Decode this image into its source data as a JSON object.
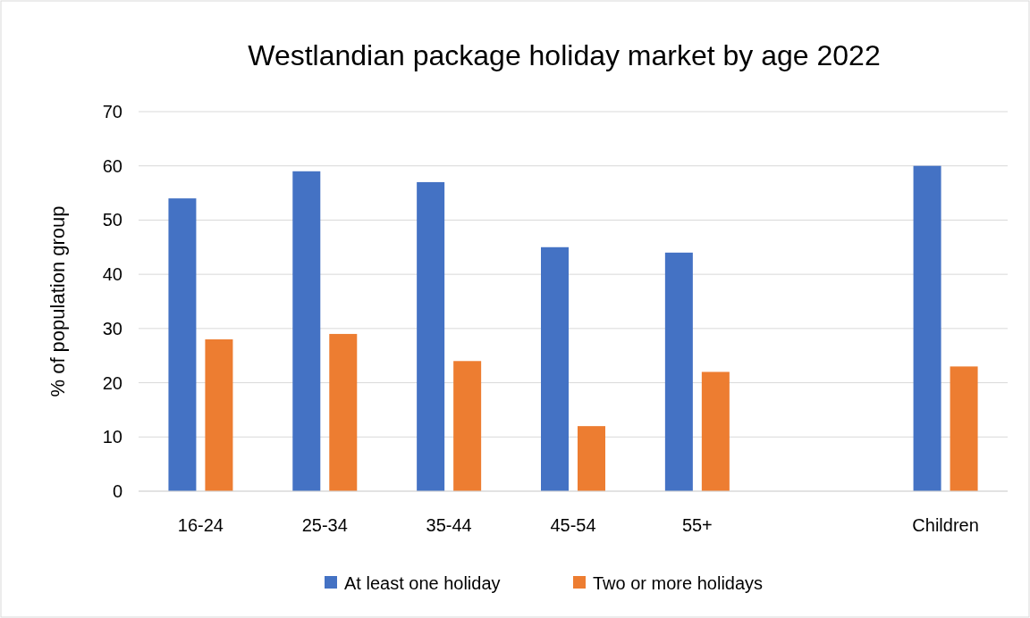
{
  "chart_data": {
    "type": "bar",
    "title": "Westlandian package holiday market by age 2022",
    "ylabel": "% of population group",
    "categories": [
      "16-24",
      "25-34",
      "35-44",
      "45-54",
      "55+",
      null,
      "Children"
    ],
    "series": [
      {
        "name": "At least one holiday",
        "color": "#4472c4",
        "values": [
          54,
          59,
          57,
          45,
          44,
          null,
          60
        ]
      },
      {
        "name": "Two or more holidays",
        "color": "#ed7d31",
        "values": [
          28,
          29,
          24,
          12,
          22,
          null,
          23
        ]
      }
    ],
    "ylim": [
      0,
      70
    ],
    "yticks": [
      0,
      10,
      20,
      30,
      40,
      50,
      60,
      70
    ],
    "grid": "y",
    "legend": "bottom"
  }
}
